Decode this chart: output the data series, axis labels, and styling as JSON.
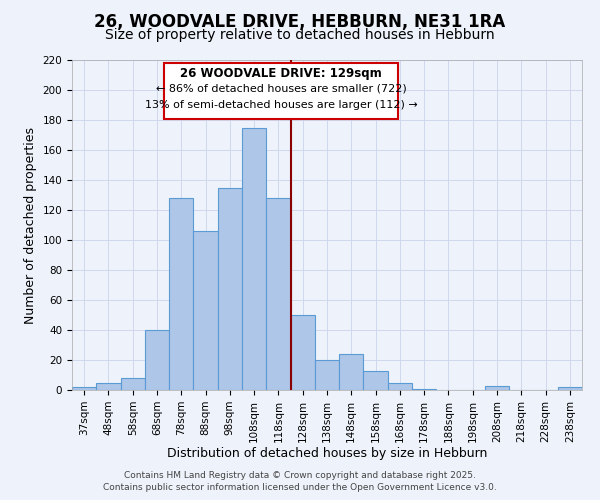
{
  "title": "26, WOODVALE DRIVE, HEBBURN, NE31 1RA",
  "subtitle": "Size of property relative to detached houses in Hebburn",
  "xlabel": "Distribution of detached houses by size in Hebburn",
  "ylabel": "Number of detached properties",
  "bar_labels": [
    "37sqm",
    "48sqm",
    "58sqm",
    "68sqm",
    "78sqm",
    "88sqm",
    "98sqm",
    "108sqm",
    "118sqm",
    "128sqm",
    "138sqm",
    "148sqm",
    "158sqm",
    "168sqm",
    "178sqm",
    "188sqm",
    "198sqm",
    "208sqm",
    "218sqm",
    "228sqm",
    "238sqm"
  ],
  "bar_values": [
    2,
    5,
    8,
    40,
    128,
    106,
    135,
    175,
    128,
    50,
    20,
    24,
    13,
    5,
    1,
    0,
    0,
    3,
    0,
    0,
    2
  ],
  "bar_color": "#aec6e8",
  "bar_edge_color": "#5b9bd5",
  "vline_x_index": 8.5,
  "vline_color": "#8B0000",
  "annotation_title": "26 WOODVALE DRIVE: 129sqm",
  "annotation_line1": "← 86% of detached houses are smaller (722)",
  "annotation_line2": "13% of semi-detached houses are larger (112) →",
  "annotation_box_edge": "#cc0000",
  "ylim": [
    0,
    220
  ],
  "yticks": [
    0,
    20,
    40,
    60,
    80,
    100,
    120,
    140,
    160,
    180,
    200,
    220
  ],
  "footer1": "Contains HM Land Registry data © Crown copyright and database right 2025.",
  "footer2": "Contains public sector information licensed under the Open Government Licence v3.0.",
  "bg_color": "#eef2fa",
  "grid_color": "#d0d8ee",
  "title_fontsize": 12,
  "subtitle_fontsize": 10,
  "axis_label_fontsize": 9,
  "tick_fontsize": 7.5,
  "footer_fontsize": 6.5
}
